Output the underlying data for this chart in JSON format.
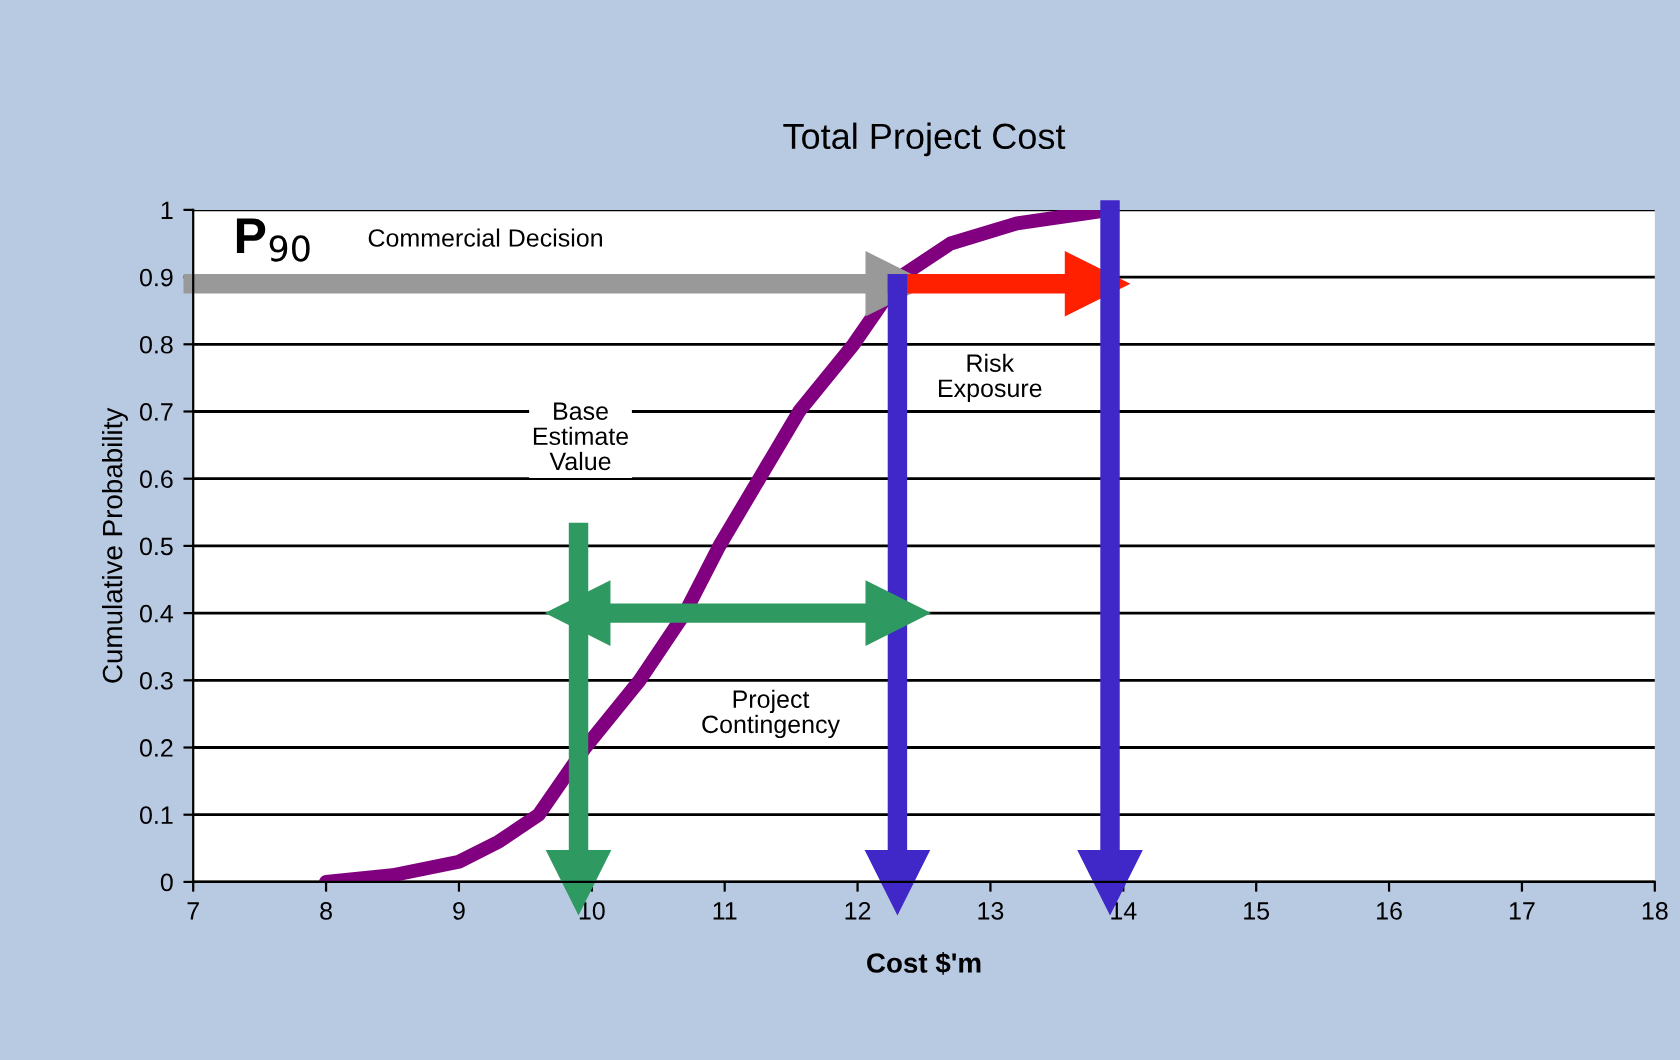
{
  "chart_data": {
    "type": "line",
    "title": "Total Project Cost",
    "xlabel": "Cost $'m",
    "ylabel": "Cumulative Probability",
    "xlim": [
      7,
      18
    ],
    "xticks": [
      7,
      8,
      9,
      10,
      11,
      12,
      13,
      14,
      15,
      16,
      17,
      18
    ],
    "ylim": [
      0,
      1
    ],
    "yticks": [
      0,
      0.1,
      0.2,
      0.3,
      0.4,
      0.5,
      0.6,
      0.7,
      0.8,
      0.9,
      1
    ],
    "grid": "y",
    "legend": false,
    "series": [
      {
        "color": "#800080",
        "marker": "none",
        "x": [
          8,
          8.5,
          9,
          9.3,
          9.6,
          9.95,
          10.36,
          10.7,
          10.96,
          11.26,
          11.56,
          11.97,
          12.32,
          12.7,
          13.2,
          13.9
        ],
        "values": [
          0,
          0.01,
          0.03,
          0.06,
          0.1,
          0.2,
          0.3,
          0.4,
          0.5,
          0.6,
          0.7,
          0.8,
          0.9,
          0.95,
          0.98,
          1
        ]
      },
      {
        "color": "#999999",
        "marker": "triangle",
        "x": [
          7,
          12.3
        ],
        "values": [
          0.89,
          0.89
        ]
      },
      {
        "color": "#ff2000",
        "marker": "triangle",
        "x": [
          12.3,
          13.8
        ],
        "values": [
          0.89,
          0.89
        ]
      },
      {
        "color": "#4028c8",
        "marker": "triangle",
        "x": [
          12.3,
          12.3
        ],
        "values": [
          0.89,
          0
        ]
      },
      {
        "color": "#4028c8",
        "marker": "triangle",
        "x": [
          13.9,
          13.9
        ],
        "values": [
          1,
          0
        ]
      },
      {
        "color": "#2e9960",
        "marker": "triangle",
        "x": [
          9.9,
          9.9
        ],
        "values": [
          0.52,
          0
        ]
      },
      {
        "color": "#2e9960",
        "marker": "triangle",
        "x": [
          9.9,
          12.3
        ],
        "values": [
          0.4,
          0.4
        ]
      }
    ],
    "annotations": [
      "P$_{90}$",
      "Commercial Decision",
      "Base\nEstimate\nValue",
      "Risk\nExposure",
      "Project\nContingency"
    ]
  }
}
